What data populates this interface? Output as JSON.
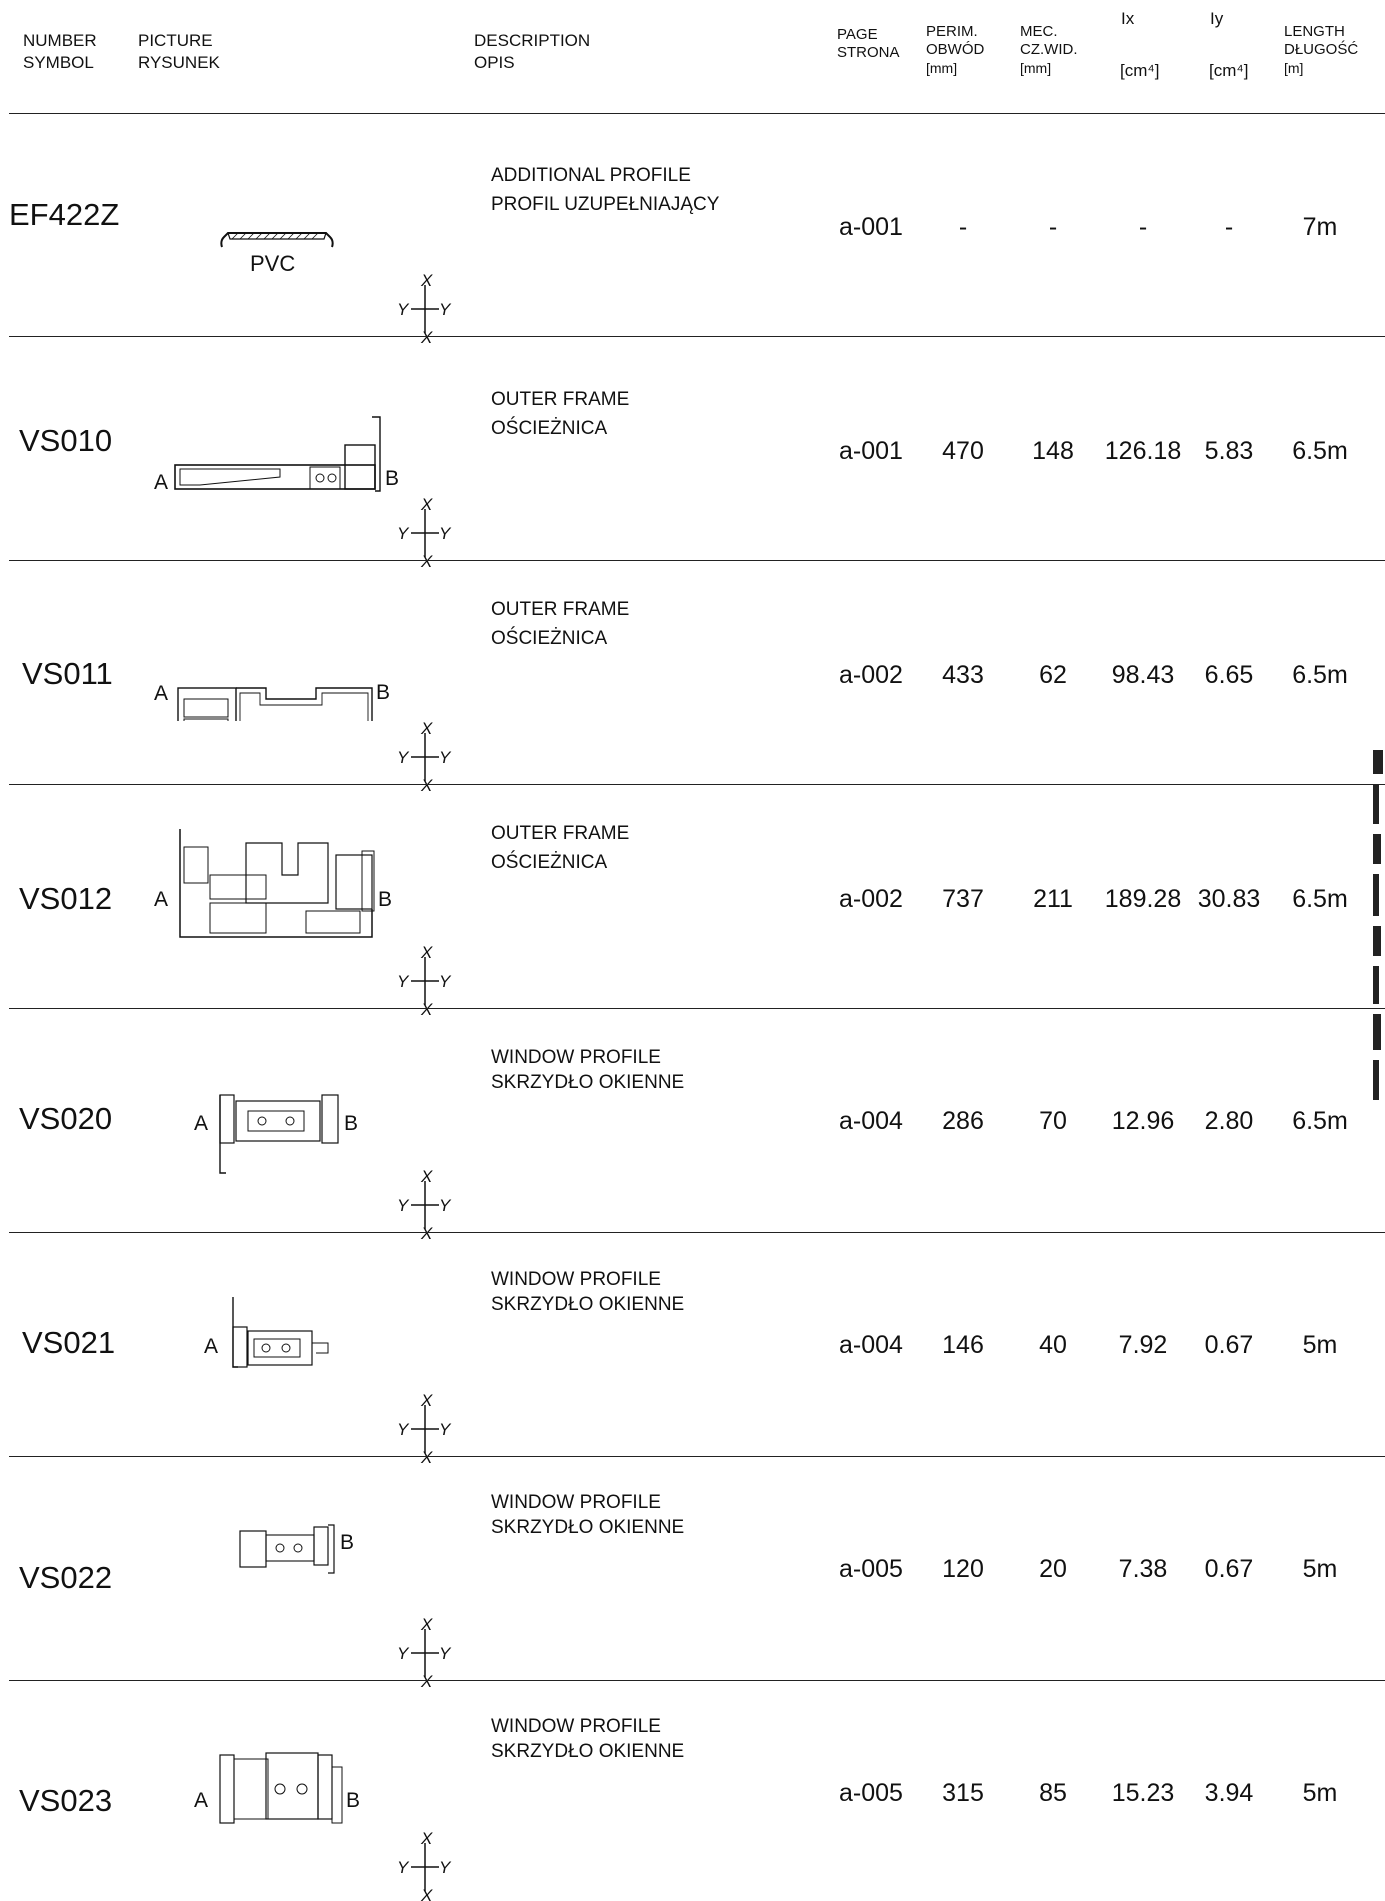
{
  "header": {
    "number": "NUMBER",
    "symbol": "SYMBOL",
    "picture": "PICTURE",
    "rysunek": "RYSUNEK",
    "description": "DESCRIPTION",
    "opis": "OPIS",
    "page": "PAGE",
    "strona": "STRONA",
    "perim": "PERIM.",
    "obwod": "OBWÓD",
    "perim_unit": "[mm]",
    "mec": "MEC.",
    "czwid": "CZ.WID.",
    "mec_unit": "[mm]",
    "ix": "Ix",
    "ix_unit": "[cm⁴]",
    "iy": "Iy",
    "iy_unit": "[cm⁴]",
    "length": "LENGTH",
    "dlugosc": "DŁUGOŚĆ",
    "length_unit": "[m]"
  },
  "axis_labels": {
    "x": "X",
    "y": "Y"
  },
  "rows": [
    {
      "symbol": "EF422Z",
      "desc_en": "ADDITIONAL PROFILE",
      "desc_pl": "PROFIL UZUPEŁNIAJĄCY",
      "page": "a-001",
      "perim": "-",
      "mec": "-",
      "ix": "-",
      "iy": "-",
      "length": "7m",
      "drawing_note": "PVC"
    },
    {
      "symbol": "VS010",
      "desc_en": "OUTER FRAME",
      "desc_pl": "OŚCIEŻNICA",
      "page": "a-001",
      "perim": "470",
      "mec": "148",
      "ix": "126.18",
      "iy": "5.83",
      "length": "6.5m",
      "label_a": "A",
      "label_b": "B"
    },
    {
      "symbol": "VS011",
      "desc_en": "OUTER FRAME",
      "desc_pl": "OŚCIEŻNICA",
      "page": "a-002",
      "perim": "433",
      "mec": "62",
      "ix": "98.43",
      "iy": "6.65",
      "length": "6.5m",
      "label_a": "A",
      "label_b": "B"
    },
    {
      "symbol": "VS012",
      "desc_en": "OUTER FRAME",
      "desc_pl": "OŚCIEŻNICA",
      "page": "a-002",
      "perim": "737",
      "mec": "211",
      "ix": "189.28",
      "iy": "30.83",
      "length": "6.5m",
      "label_a": "A",
      "label_b": "B"
    },
    {
      "symbol": "VS020",
      "desc_en": "WINDOW PROFILE",
      "desc_pl": "SKRZYDŁO OKIENNE",
      "page": "a-004",
      "perim": "286",
      "mec": "70",
      "ix": "12.96",
      "iy": "2.80",
      "length": "6.5m",
      "label_a": "A",
      "label_b": "B"
    },
    {
      "symbol": "VS021",
      "desc_en": "WINDOW PROFILE",
      "desc_pl": "SKRZYDŁO OKIENNE",
      "page": "a-004",
      "perim": "146",
      "mec": "40",
      "ix": "7.92",
      "iy": "0.67",
      "length": "5m",
      "label_a": "A"
    },
    {
      "symbol": "VS022",
      "desc_en": "WINDOW PROFILE",
      "desc_pl": "SKRZYDŁO OKIENNE",
      "page": "a-005",
      "perim": "120",
      "mec": "20",
      "ix": "7.38",
      "iy": "0.67",
      "length": "5m",
      "label_b": "B"
    },
    {
      "symbol": "VS023",
      "desc_en": "WINDOW PROFILE",
      "desc_pl": "SKRZYDŁO OKIENNE",
      "page": "a-005",
      "perim": "315",
      "mec": "85",
      "ix": "15.23",
      "iy": "3.94",
      "length": "5m",
      "label_a": "A",
      "label_b": "B"
    }
  ]
}
